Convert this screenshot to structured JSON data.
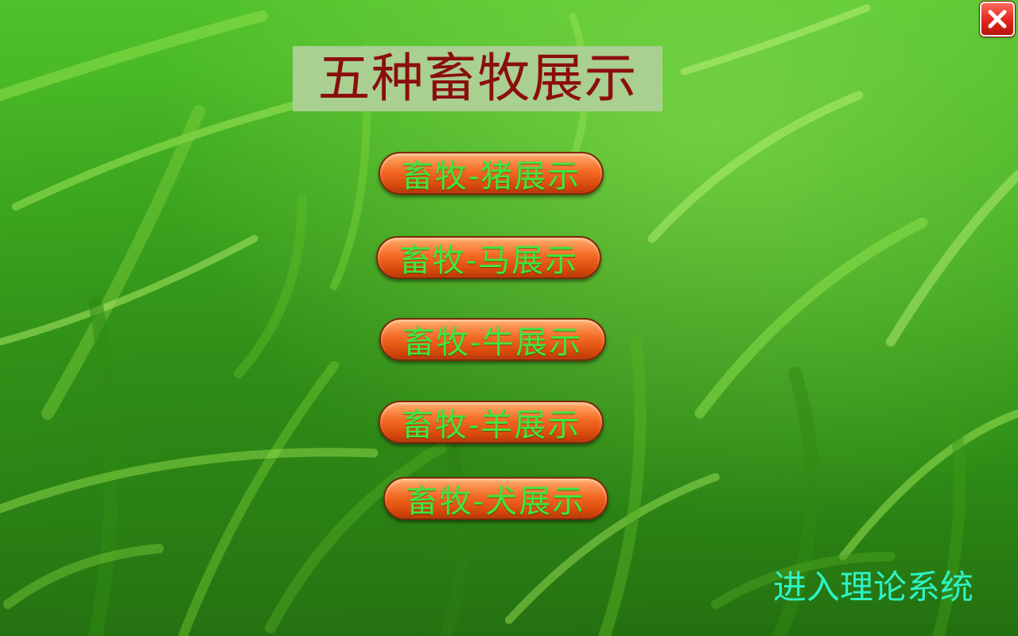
{
  "app": {
    "title": "五种畜牧展示"
  },
  "menu": {
    "items": [
      {
        "label": "畜牧-猪展示"
      },
      {
        "label": "畜牧-马展示"
      },
      {
        "label": "畜牧-牛展示"
      },
      {
        "label": "畜牧-羊展示"
      },
      {
        "label": "畜牧-犬展示"
      }
    ]
  },
  "footer": {
    "enter_theory_label": "进入理论系统"
  },
  "window": {
    "close_icon": "close-icon"
  },
  "colors": {
    "title_text": "#8b0e0e",
    "title_background": "#a9cf91",
    "button_fill": "#f46a24",
    "button_text": "#3fe63f",
    "link_text": "#2ef2c6",
    "close_button": "#e0261a"
  }
}
